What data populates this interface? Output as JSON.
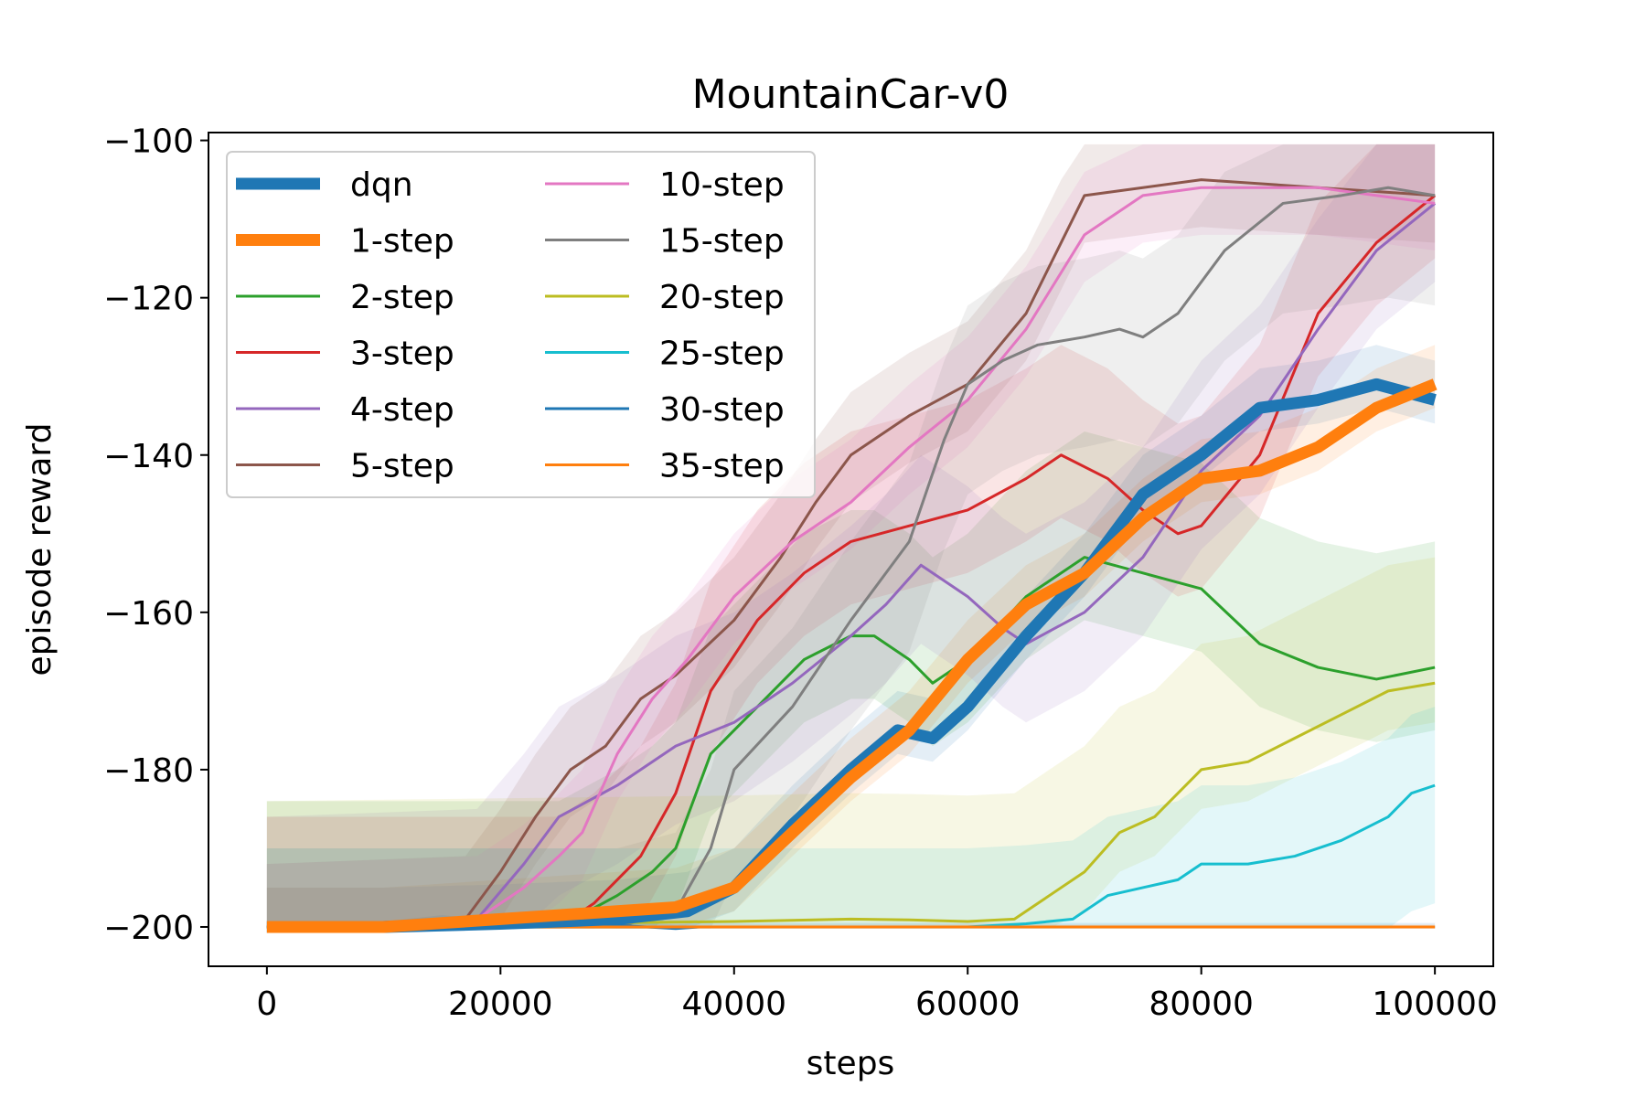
{
  "chart_data": {
    "type": "line",
    "title": "MountainCar-v0",
    "xlabel": "steps",
    "ylabel": "episode reward",
    "xlim": [
      -5000,
      105000
    ],
    "ylim": [
      -205,
      -99
    ],
    "xticks": [
      0,
      20000,
      40000,
      60000,
      80000,
      100000
    ],
    "xtick_labels": [
      "0",
      "20000",
      "40000",
      "60000",
      "80000",
      "100000"
    ],
    "yticks": [
      -200,
      -180,
      -160,
      -140,
      -120,
      -100
    ],
    "ytick_labels": [
      "−200",
      "−180",
      "−160",
      "−140",
      "−120",
      "−100"
    ],
    "grid": false,
    "legend": {
      "placement": "top-left",
      "columns": 2
    },
    "series": [
      {
        "name": "dqn",
        "color": "#1f77b4",
        "width": 13,
        "bandLo": 3,
        "bandHi": 5,
        "x": [
          0,
          10000,
          20000,
          30000,
          36000,
          40000,
          45000,
          50000,
          54000,
          57000,
          60000,
          65000,
          70000,
          75000,
          80000,
          85000,
          90000,
          95000,
          100000
        ],
        "y": [
          -200,
          -200,
          -199.6,
          -199,
          -198,
          -195,
          -187,
          -180,
          -175,
          -176,
          -172,
          -163,
          -155,
          -145,
          -140,
          -134,
          -133,
          -131,
          -133
        ]
      },
      {
        "name": "1-step",
        "color": "#ff7f0e",
        "width": 13,
        "bandLo": 3,
        "bandHi": 5,
        "x": [
          0,
          10000,
          15000,
          20000,
          25000,
          30000,
          35000,
          40000,
          45000,
          50000,
          55000,
          60000,
          65000,
          70000,
          75000,
          80000,
          85000,
          90000,
          95000,
          100000
        ],
        "y": [
          -200,
          -200,
          -199.5,
          -199,
          -198.5,
          -198,
          -197.5,
          -195,
          -188,
          -181,
          -175,
          -166,
          -159,
          -155,
          -148,
          -143,
          -142,
          -139,
          -134,
          -131
        ]
      },
      {
        "name": "2-step",
        "color": "#2ca02c",
        "width": 3,
        "bandLo": 8,
        "bandHi": 16,
        "x": [
          0,
          25000,
          30000,
          33000,
          35000,
          38000,
          42000,
          46000,
          50000,
          52000,
          55000,
          57000,
          60000,
          65000,
          70000,
          75000,
          80000,
          85000,
          90000,
          95000,
          100000
        ],
        "y": [
          -200,
          -200,
          -196,
          -193,
          -190,
          -178,
          -172,
          -166,
          -163,
          -163,
          -166,
          -169,
          -166,
          -158,
          -153,
          -155,
          -157,
          -164,
          -167,
          -168.5,
          -167
        ]
      },
      {
        "name": "3-step",
        "color": "#d62728",
        "width": 3,
        "bandLo": 8,
        "bandHi": 14,
        "x": [
          0,
          25000,
          28000,
          32000,
          35000,
          38000,
          42000,
          46000,
          50000,
          55000,
          60000,
          65000,
          68000,
          72000,
          75000,
          78000,
          80000,
          85000,
          90000,
          95000,
          100000
        ],
        "y": [
          -200,
          -200,
          -197,
          -191,
          -183,
          -170,
          -161,
          -155,
          -151,
          -149,
          -147,
          -143,
          -140,
          -143,
          -147,
          -150,
          -149,
          -140,
          -122,
          -113,
          -107
        ]
      },
      {
        "name": "4-step",
        "color": "#9467bd",
        "width": 3,
        "bandLo": 10,
        "bandHi": 14,
        "x": [
          0,
          18000,
          22000,
          25000,
          30000,
          35000,
          40000,
          45000,
          50000,
          53000,
          56000,
          60000,
          63000,
          65000,
          70000,
          75000,
          80000,
          85000,
          90000,
          95000,
          100000
        ],
        "y": [
          -200,
          -199,
          -192,
          -186,
          -182,
          -177,
          -174,
          -169,
          -163,
          -159,
          -154,
          -158,
          -162,
          -164,
          -160,
          -153,
          -142,
          -135,
          -124,
          -114,
          -108
        ]
      },
      {
        "name": "5-step",
        "color": "#8c564b",
        "width": 3,
        "bandLo": 6,
        "bandHi": 8,
        "x": [
          0,
          17000,
          20000,
          23000,
          26000,
          29000,
          32000,
          35000,
          40000,
          44000,
          47000,
          50000,
          55000,
          60000,
          65000,
          68000,
          70000,
          75000,
          80000,
          90000,
          100000
        ],
        "y": [
          -200,
          -199,
          -193,
          -186,
          -180,
          -177,
          -171,
          -168,
          -161,
          -153,
          -146,
          -140,
          -135,
          -131,
          -122,
          -113,
          -107,
          -106,
          -105,
          -106,
          -107
        ]
      },
      {
        "name": "10-step",
        "color": "#e377c2",
        "width": 3,
        "bandLo": 6,
        "bandHi": 8,
        "x": [
          0,
          18000,
          22000,
          25000,
          27000,
          30000,
          33000,
          36000,
          40000,
          45000,
          50000,
          55000,
          60000,
          65000,
          70000,
          75000,
          80000,
          90000,
          100000
        ],
        "y": [
          -200,
          -199,
          -195,
          -191,
          -188,
          -178,
          -171,
          -166,
          -158,
          -151,
          -146,
          -139,
          -133,
          -124,
          -112,
          -107,
          -106,
          -106,
          -108
        ]
      },
      {
        "name": "15-step",
        "color": "#7f7f7f",
        "width": 3,
        "bandLo": 14,
        "bandHi": 10,
        "x": [
          0,
          30000,
          35000,
          38000,
          40000,
          45000,
          50000,
          55000,
          58000,
          60000,
          63000,
          66000,
          70000,
          73000,
          75000,
          78000,
          82000,
          87000,
          92000,
          96000,
          100000
        ],
        "y": [
          -200,
          -200,
          -198,
          -190,
          -180,
          -172,
          -161,
          -151,
          -138,
          -131,
          -128,
          -126,
          -125,
          -124,
          -125,
          -122,
          -114,
          -108,
          -107,
          -106,
          -107
        ]
      },
      {
        "name": "20-step",
        "color": "#bcbd22",
        "width": 3,
        "bandLo": 5,
        "bandHi": 16,
        "x": [
          0,
          40000,
          50000,
          55000,
          60000,
          64000,
          67000,
          70000,
          73000,
          76000,
          80000,
          84000,
          88000,
          92000,
          96000,
          100000
        ],
        "y": [
          -200,
          -199.3,
          -199,
          -199.1,
          -199.3,
          -199,
          -196,
          -193,
          -188,
          -186,
          -180,
          -179,
          -176,
          -173,
          -170,
          -169
        ]
      },
      {
        "name": "25-step",
        "color": "#17becf",
        "width": 3,
        "bandLo": 15,
        "bandHi": 10,
        "x": [
          0,
          60000,
          65000,
          69000,
          72000,
          75000,
          78000,
          80000,
          84000,
          88000,
          92000,
          96000,
          98000,
          100000
        ],
        "y": [
          -200,
          -200,
          -199.6,
          -199,
          -196,
          -195,
          -194,
          -192,
          -192,
          -191,
          -189,
          -186,
          -183,
          -182
        ]
      },
      {
        "name": "30-step",
        "color": "#1f77b4",
        "width": 3,
        "bandLo": 0.5,
        "bandHi": 0.5,
        "x": [
          0,
          10000,
          15000,
          20000,
          25000,
          30000,
          35000,
          37000,
          40000,
          60000,
          100000
        ],
        "y": [
          -200,
          -199.8,
          -199,
          -199.7,
          -199.5,
          -199.8,
          -200.2,
          -200,
          -200,
          -200,
          -200
        ]
      },
      {
        "name": "35-step",
        "color": "#ff7f0e",
        "width": 3,
        "bandLo": 0.3,
        "bandHi": 0.3,
        "x": [
          0,
          50000,
          100000
        ],
        "y": [
          -200,
          -200,
          -200
        ]
      }
    ]
  }
}
